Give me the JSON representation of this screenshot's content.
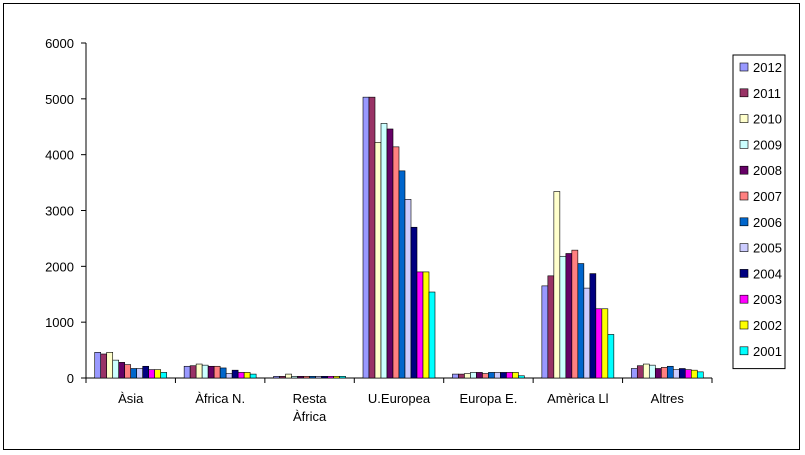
{
  "chart_data": {
    "type": "bar",
    "title": "",
    "xlabel": "",
    "ylabel": "",
    "ylim": [
      0,
      6000
    ],
    "yticks": [
      0,
      1000,
      2000,
      3000,
      4000,
      5000,
      6000
    ],
    "grid": false,
    "legend_position": "right",
    "categories": [
      [
        "Àsia"
      ],
      [
        "Àfrica N."
      ],
      [
        "Resta",
        "Àfrica"
      ],
      [
        "U.Europea"
      ],
      [
        "Europa E."
      ],
      [
        "Amèrica Ll"
      ],
      [
        "Altres"
      ]
    ],
    "series": [
      {
        "name": "2012",
        "color": "#9999FF",
        "values": [
          460,
          210,
          30,
          5030,
          70,
          1650,
          170
        ]
      },
      {
        "name": "2011",
        "color": "#993366",
        "values": [
          430,
          220,
          30,
          5030,
          70,
          1830,
          220
        ]
      },
      {
        "name": "2010",
        "color": "#FFFFCC",
        "values": [
          460,
          250,
          70,
          4220,
          80,
          3340,
          250
        ]
      },
      {
        "name": "2009",
        "color": "#CCFFFF",
        "values": [
          320,
          230,
          30,
          4560,
          100,
          2180,
          230
        ]
      },
      {
        "name": "2008",
        "color": "#660066",
        "values": [
          280,
          210,
          30,
          4460,
          100,
          2230,
          170
        ]
      },
      {
        "name": "2007",
        "color": "#FF8080",
        "values": [
          240,
          210,
          30,
          4140,
          80,
          2290,
          190
        ]
      },
      {
        "name": "2006",
        "color": "#0066CC",
        "values": [
          170,
          180,
          30,
          3710,
          100,
          2050,
          210
        ]
      },
      {
        "name": "2005",
        "color": "#CCCCFF",
        "values": [
          170,
          80,
          30,
          3200,
          100,
          1610,
          150
        ]
      },
      {
        "name": "2004",
        "color": "#000080",
        "values": [
          210,
          140,
          30,
          2700,
          100,
          1870,
          170
        ]
      },
      {
        "name": "2003",
        "color": "#FF00FF",
        "values": [
          150,
          100,
          30,
          1900,
          100,
          1240,
          150
        ]
      },
      {
        "name": "2002",
        "color": "#FFFF00",
        "values": [
          150,
          100,
          30,
          1900,
          100,
          1240,
          140
        ]
      },
      {
        "name": "2001",
        "color": "#00FFFF",
        "values": [
          100,
          70,
          30,
          1540,
          40,
          780,
          110
        ]
      }
    ]
  }
}
